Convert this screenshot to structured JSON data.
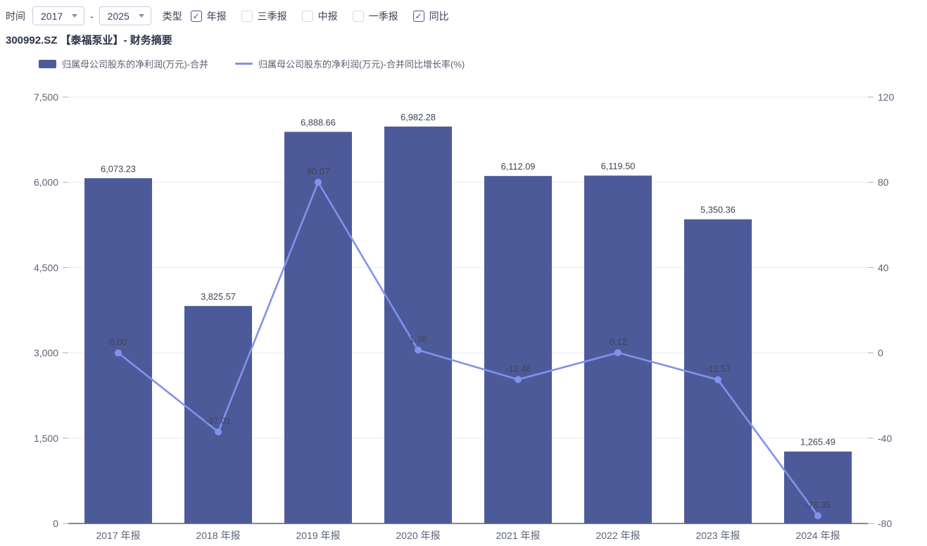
{
  "toolbar": {
    "time_label": "时间",
    "start_year": "2017",
    "end_year": "2025",
    "separator": "-",
    "type_label": "类型",
    "checkboxes": [
      {
        "label": "年报",
        "checked": true
      },
      {
        "label": "三季报",
        "checked": false
      },
      {
        "label": "中报",
        "checked": false
      },
      {
        "label": "一季报",
        "checked": false
      },
      {
        "label": "同比",
        "checked": true
      }
    ]
  },
  "title": "300992.SZ 【泰福泵业】- 财务摘要",
  "legend": [
    {
      "label": "归属母公司股东的净利润(万元)-合并",
      "type": "bar",
      "color": "#4d5a9a"
    },
    {
      "label": "归属母公司股东的净利润(万元)-合并同比增长率(%)",
      "type": "line",
      "color": "#8092ec"
    }
  ],
  "colors": {
    "bar": "#4d5a9a",
    "line": "#8092ec",
    "grid": "#e7ebf4",
    "axis_line": "#5d6470",
    "tick_mark": "#aab1c3",
    "tick_text": "#5c6375",
    "value_label": "#3f4454"
  },
  "chart_data": {
    "type": "bar",
    "subtype": "bar+line dual-axis",
    "categories": [
      "2017 年报",
      "2018 年报",
      "2019 年报",
      "2020 年报",
      "2021 年报",
      "2022 年报",
      "2023 年报",
      "2024 年报"
    ],
    "series": [
      {
        "name": "归属母公司股东的净利润(万元)-合并",
        "type": "bar",
        "axis": "left",
        "color": "#4d5a9a",
        "values": [
          6073.23,
          3825.57,
          6888.66,
          6982.28,
          6112.09,
          6119.5,
          5350.36,
          1265.49
        ],
        "labels": [
          "6,073.23",
          "3,825.57",
          "6,888.66",
          "6,982.28",
          "6,112.09",
          "6,119.50",
          "5,350.36",
          "1,265.49"
        ]
      },
      {
        "name": "归属母公司股东的净利润(万元)-合并同比增长率(%)",
        "type": "line",
        "axis": "right",
        "color": "#8092ec",
        "values": [
          0.0,
          -37.01,
          80.07,
          1.36,
          -12.46,
          0.12,
          -12.57,
          -76.35
        ],
        "labels": [
          "0.00",
          "-37.01",
          "80.07",
          "1.36",
          "-12.46",
          "0.12",
          "-12.57",
          "-76.35"
        ]
      }
    ],
    "left_axis": {
      "min": 0,
      "max": 7500,
      "tick_values": [
        7500,
        6000,
        4500,
        3000,
        1500,
        0
      ],
      "tick_labels": [
        "7,500",
        "6,000",
        "4,500",
        "3,000",
        "1,500",
        "0"
      ]
    },
    "right_axis": {
      "min": -80,
      "max": 120,
      "tick_values": [
        120,
        80,
        40,
        0,
        -40,
        -80
      ],
      "tick_labels": [
        "120",
        "80",
        "40",
        "0",
        "-40",
        "-80"
      ]
    },
    "grid": true,
    "legend_position": "top-left"
  }
}
